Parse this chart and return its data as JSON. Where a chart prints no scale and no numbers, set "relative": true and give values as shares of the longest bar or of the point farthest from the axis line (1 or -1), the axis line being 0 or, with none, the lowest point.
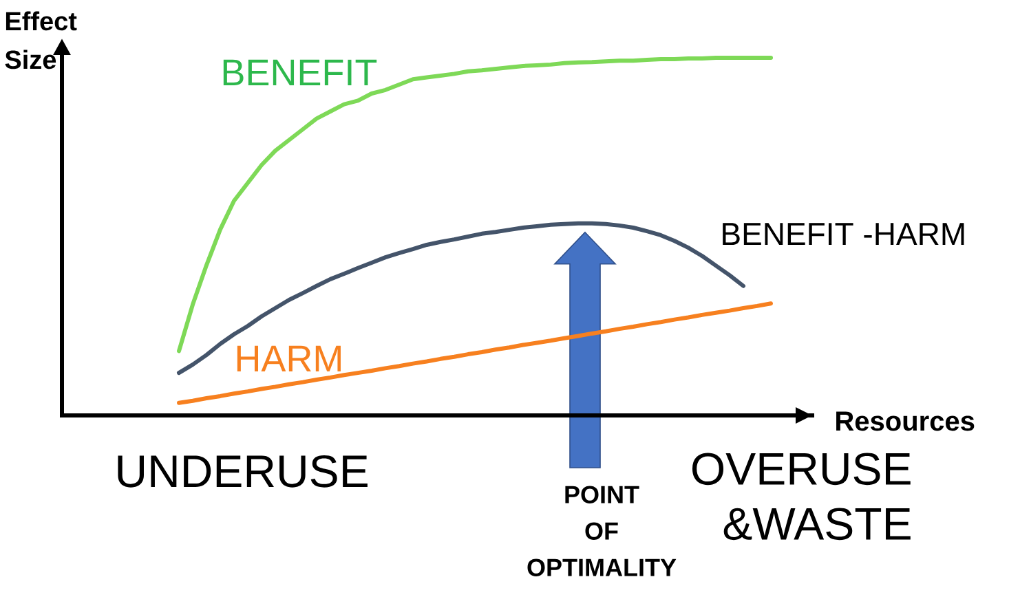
{
  "chart_data": {
    "type": "line",
    "relative": true,
    "ylabel": "Effect Size",
    "xlabel": "Resources",
    "categories": [
      null,
      null,
      null,
      null,
      null,
      null,
      null,
      null,
      null,
      null,
      null,
      null,
      null,
      null,
      null,
      null,
      null,
      null,
      null,
      null,
      null,
      null,
      null,
      null,
      null,
      null,
      null,
      null,
      null,
      null,
      null,
      null,
      null,
      null,
      null,
      null,
      null,
      null,
      null,
      null,
      null,
      null,
      null,
      null
    ],
    "series": [
      {
        "name": "BENEFIT",
        "color": "#7ed957",
        "values": [
          0.18,
          0.31,
          0.42,
          0.52,
          0.6,
          0.65,
          0.7,
          0.74,
          0.77,
          0.8,
          0.83,
          0.85,
          0.87,
          0.88,
          0.9,
          0.91,
          0.925,
          0.94,
          0.945,
          0.95,
          0.955,
          0.962,
          0.965,
          0.969,
          0.973,
          0.977,
          0.979,
          0.981,
          0.985,
          0.987,
          0.988,
          0.99,
          0.992,
          0.992,
          0.994,
          0.996,
          0.996,
          0.998,
          0.998,
          1,
          1,
          1,
          1,
          1
        ]
      },
      {
        "name": "HARM",
        "color": "#f7801f",
        "values": [
          0.035,
          0.041,
          0.048,
          0.054,
          0.061,
          0.067,
          0.074,
          0.08,
          0.087,
          0.093,
          0.1,
          0.106,
          0.113,
          0.119,
          0.125,
          0.132,
          0.138,
          0.145,
          0.151,
          0.158,
          0.164,
          0.171,
          0.177,
          0.184,
          0.19,
          0.197,
          0.203,
          0.209,
          0.216,
          0.222,
          0.229,
          0.235,
          0.242,
          0.248,
          0.255,
          0.261,
          0.268,
          0.274,
          0.281,
          0.287,
          0.293,
          0.3,
          0.306,
          0.313
        ]
      },
      {
        "name": "BENEFIT -HARM",
        "color": "#44546a",
        "values": [
          0.119,
          0.142,
          0.169,
          0.2,
          0.227,
          0.25,
          0.277,
          0.3,
          0.323,
          0.342,
          0.362,
          0.381,
          0.396,
          0.412,
          0.427,
          0.442,
          0.454,
          0.465,
          0.477,
          0.485,
          0.492,
          0.5,
          0.508,
          0.513,
          0.519,
          0.525,
          0.529,
          0.533,
          0.535,
          0.537,
          0.537,
          0.535,
          0.531,
          0.525,
          0.515,
          0.504,
          0.488,
          0.469,
          0.446,
          0.419,
          0.392,
          0.362,
          null,
          null
        ]
      }
    ],
    "annotations": [
      "UNDERUSE",
      "OVERUSE &WASTE",
      "POINT OF OPTIMALITY"
    ]
  }
}
